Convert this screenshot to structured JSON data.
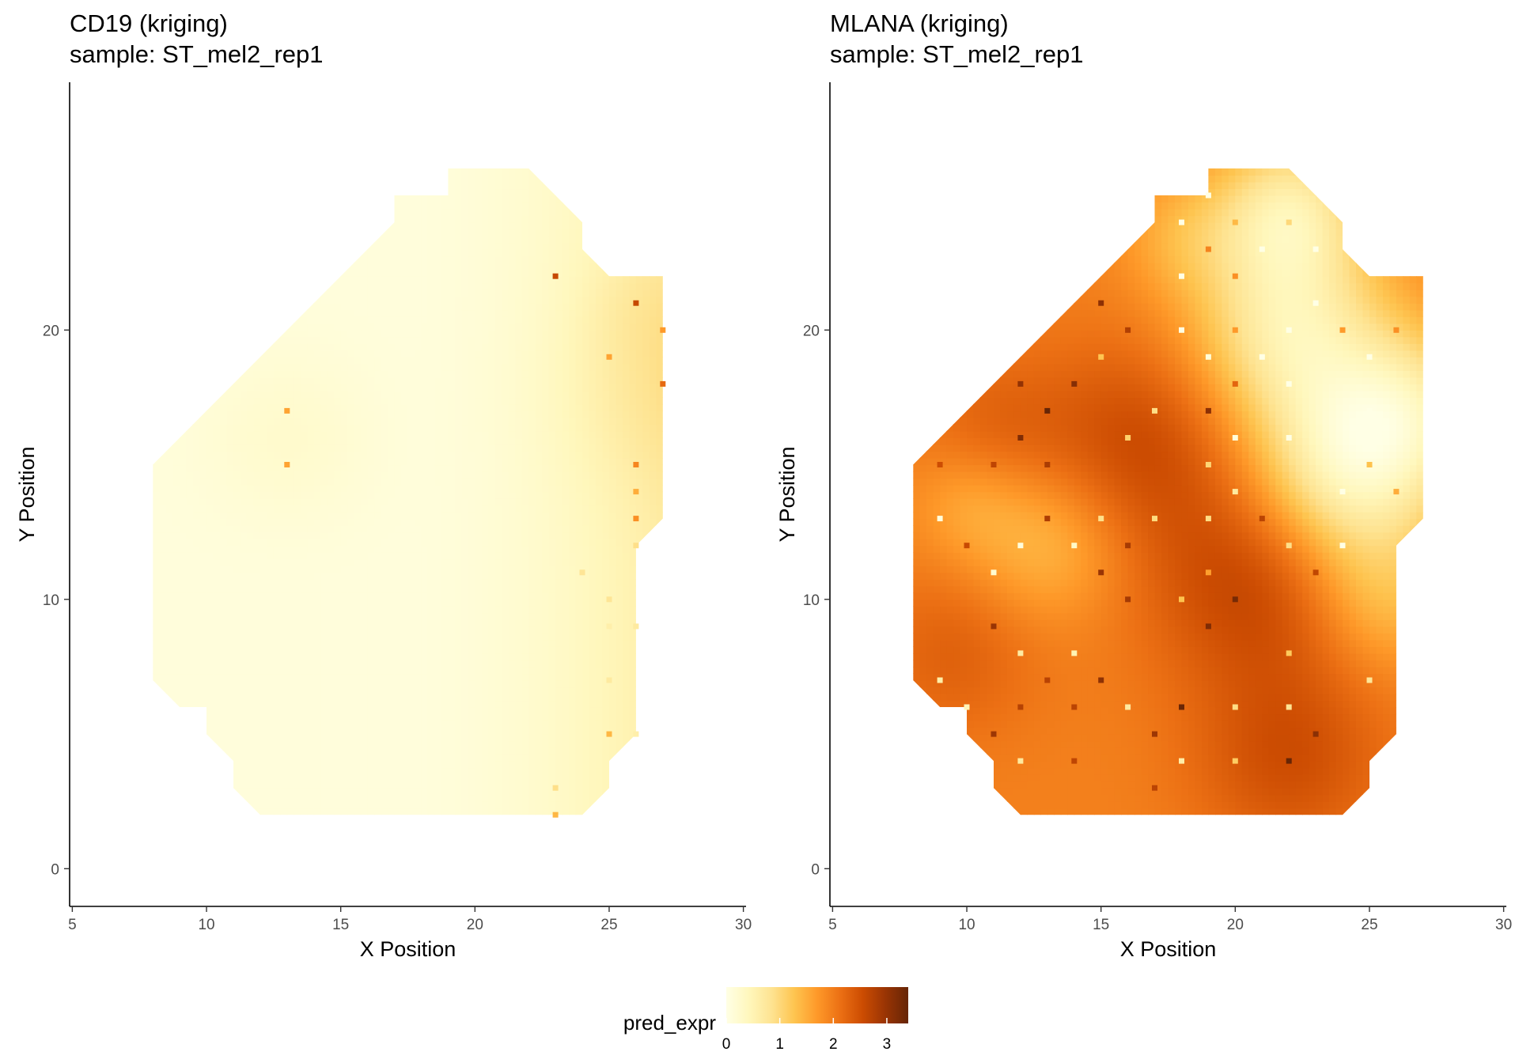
{
  "chart_data": [
    {
      "type": "heatmap",
      "gene": "CD19",
      "title": "CD19 (kriging)",
      "subtitle": "sample: ST_mel2_rep1",
      "xlabel": "X Position",
      "ylabel": "Y Position",
      "xlim": [
        4.9,
        30.1
      ],
      "ylim": [
        -1.4,
        29.2
      ],
      "xticks": [
        5,
        10,
        15,
        20,
        25,
        30
      ],
      "yticks": [
        0,
        10,
        20
      ],
      "grid": false,
      "region_polygon": [
        [
          8,
          15
        ],
        [
          17,
          24
        ],
        [
          17,
          25
        ],
        [
          19,
          25
        ],
        [
          19,
          26
        ],
        [
          22,
          26
        ],
        [
          24,
          24
        ],
        [
          24,
          23
        ],
        [
          25,
          22
        ],
        [
          27,
          22
        ],
        [
          27,
          13
        ],
        [
          26,
          12
        ],
        [
          26,
          5
        ],
        [
          25,
          4
        ],
        [
          25,
          3
        ],
        [
          24,
          2
        ],
        [
          12,
          2
        ],
        [
          11,
          3
        ],
        [
          11,
          4
        ],
        [
          10,
          5
        ],
        [
          10,
          6
        ],
        [
          9,
          6
        ],
        [
          8,
          7
        ]
      ],
      "field": {
        "base": 0.1,
        "gradient": {
          "from_x": 17,
          "to_x": 27,
          "max_add": 0.55
        },
        "hotspots": [
          {
            "x": 13,
            "y": 16,
            "r": 2.2,
            "amp": 0.15
          },
          {
            "x": 27,
            "y": 18,
            "r": 2.6,
            "amp": 0.25
          },
          {
            "x": 26,
            "y": 21,
            "r": 1.5,
            "amp": 0.12
          }
        ]
      },
      "spots": [
        {
          "x": 13,
          "y": 17,
          "v": 1.6
        },
        {
          "x": 13,
          "y": 15,
          "v": 1.6
        },
        {
          "x": 23,
          "y": 22,
          "v": 2.6
        },
        {
          "x": 26,
          "y": 21,
          "v": 2.6
        },
        {
          "x": 27,
          "y": 20,
          "v": 1.7
        },
        {
          "x": 25,
          "y": 19,
          "v": 1.6
        },
        {
          "x": 27,
          "y": 18,
          "v": 2.2
        },
        {
          "x": 26,
          "y": 15,
          "v": 1.9
        },
        {
          "x": 26,
          "y": 14,
          "v": 1.5
        },
        {
          "x": 26,
          "y": 13,
          "v": 1.8
        },
        {
          "x": 26,
          "y": 12,
          "v": 0.9
        },
        {
          "x": 24,
          "y": 11,
          "v": 0.8
        },
        {
          "x": 25,
          "y": 10,
          "v": 0.8
        },
        {
          "x": 26,
          "y": 9,
          "v": 0.7
        },
        {
          "x": 25,
          "y": 9,
          "v": 0.6
        },
        {
          "x": 25,
          "y": 7,
          "v": 0.7
        },
        {
          "x": 25,
          "y": 5,
          "v": 1.4
        },
        {
          "x": 26,
          "y": 5,
          "v": 0.6
        },
        {
          "x": 23,
          "y": 3,
          "v": 0.9
        },
        {
          "x": 23,
          "y": 2,
          "v": 1.4
        }
      ]
    },
    {
      "type": "heatmap",
      "gene": "MLANA",
      "title": "MLANA (kriging)",
      "subtitle": "sample: ST_mel2_rep1",
      "xlabel": "X Position",
      "ylabel": "Y Position",
      "xlim": [
        4.9,
        30.1
      ],
      "ylim": [
        -1.4,
        29.2
      ],
      "xticks": [
        5,
        10,
        15,
        20,
        25,
        30
      ],
      "yticks": [
        0,
        10,
        20
      ],
      "grid": false,
      "region_polygon": [
        [
          8,
          15
        ],
        [
          17,
          24
        ],
        [
          17,
          25
        ],
        [
          19,
          25
        ],
        [
          19,
          26
        ],
        [
          22,
          26
        ],
        [
          24,
          24
        ],
        [
          24,
          23
        ],
        [
          25,
          22
        ],
        [
          27,
          22
        ],
        [
          27,
          13
        ],
        [
          26,
          12
        ],
        [
          26,
          5
        ],
        [
          25,
          4
        ],
        [
          25,
          3
        ],
        [
          24,
          2
        ],
        [
          12,
          2
        ],
        [
          11,
          3
        ],
        [
          11,
          4
        ],
        [
          10,
          5
        ],
        [
          10,
          6
        ],
        [
          9,
          6
        ],
        [
          8,
          7
        ]
      ],
      "field": {
        "base": 1.95,
        "hotspots": [
          {
            "x": 21,
            "y": 11,
            "r": 3.0,
            "amp": 0.8
          },
          {
            "x": 16.5,
            "y": 16,
            "r": 2.6,
            "amp": 0.6
          },
          {
            "x": 22,
            "y": 4,
            "r": 2.5,
            "amp": 0.55
          },
          {
            "x": 9.5,
            "y": 8,
            "r": 2.2,
            "amp": 0.35
          },
          {
            "x": 11,
            "y": 16.5,
            "r": 2.0,
            "amp": 0.3
          },
          {
            "x": 24,
            "y": 14.5,
            "r": 2.6,
            "amp": -1.45
          },
          {
            "x": 22,
            "y": 20,
            "r": 2.6,
            "amp": -1.3
          },
          {
            "x": 22,
            "y": 24.5,
            "r": 2.0,
            "amp": -1.2
          },
          {
            "x": 26.5,
            "y": 17,
            "r": 2.2,
            "amp": -1.0
          },
          {
            "x": 25.5,
            "y": 10,
            "r": 2.0,
            "amp": -0.6
          },
          {
            "x": 13,
            "y": 12,
            "r": 2.0,
            "amp": -0.55
          },
          {
            "x": 10,
            "y": 13.5,
            "r": 1.5,
            "amp": -0.35
          },
          {
            "x": 18,
            "y": 23.5,
            "r": 1.6,
            "amp": -0.4
          }
        ]
      },
      "spots_seed": 7
    }
  ],
  "legend": {
    "title": "pred_expr",
    "min": 0,
    "max": 3.4,
    "ticks": [
      0,
      1,
      2,
      3
    ],
    "colors": [
      "#ffffe5",
      "#fff7bc",
      "#fee391",
      "#fec44f",
      "#fe9929",
      "#ec7014",
      "#cc4c02",
      "#993404",
      "#662506"
    ]
  }
}
